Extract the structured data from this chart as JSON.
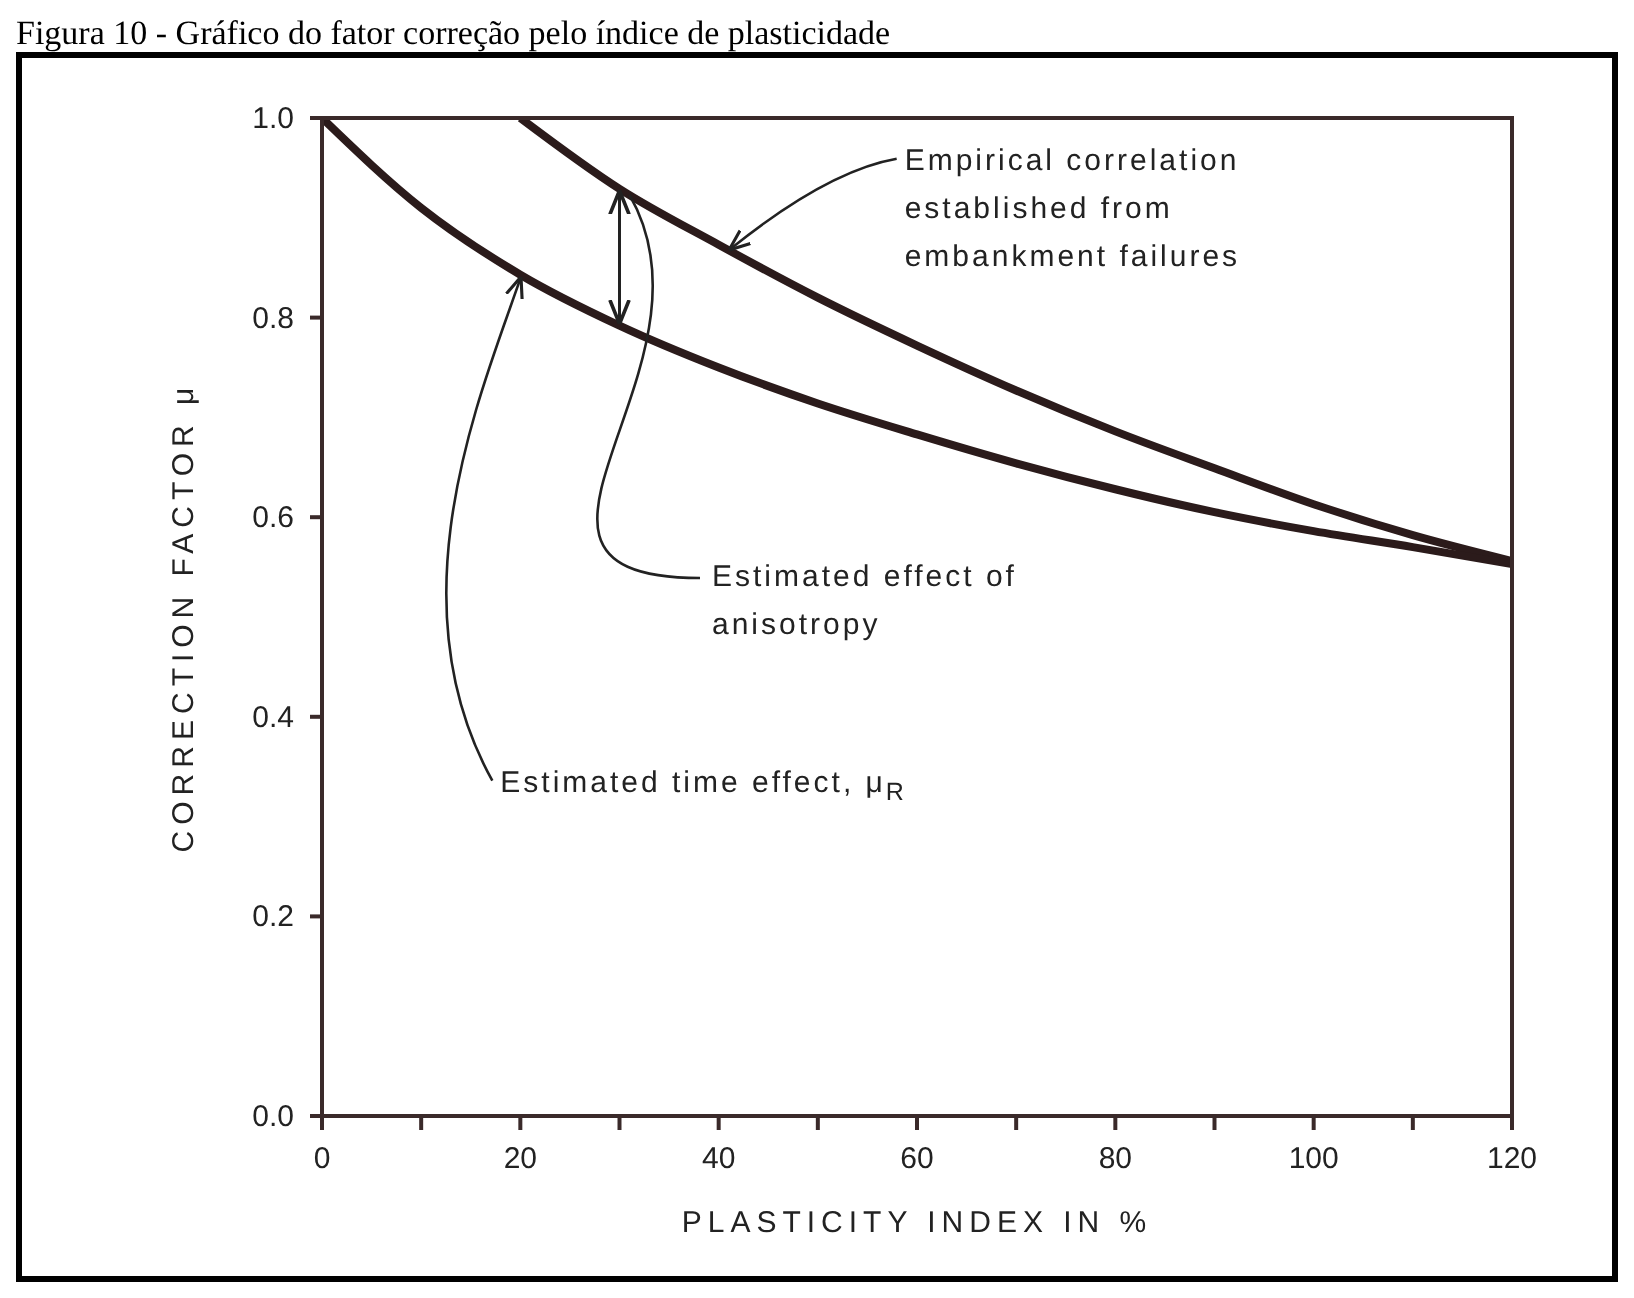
{
  "chart_data": {
    "type": "line",
    "title": "Figura 10 - Gráfico do fator correção pelo índice de plasticidade",
    "xlabel": "PLASTICITY INDEX IN %",
    "ylabel": "CORRECTION FACTOR μ",
    "series": [
      {
        "x": [
          20,
          30,
          40,
          50,
          60,
          70,
          80,
          90,
          100,
          110,
          120
        ],
        "values": [
          1.0,
          0.929,
          0.873,
          0.82,
          0.772,
          0.727,
          0.686,
          0.649,
          0.613,
          0.582,
          0.556
        ],
        "color": "#2b1b1b"
      },
      {
        "x": [
          0,
          10,
          20,
          30,
          40,
          50,
          60,
          70,
          80,
          90,
          100,
          110,
          120
        ],
        "values": [
          1.0,
          0.91,
          0.843,
          0.792,
          0.75,
          0.714,
          0.683,
          0.654,
          0.628,
          0.605,
          0.586,
          0.57,
          0.553
        ],
        "color": "#2b1b1b"
      }
    ],
    "annotations": [
      {
        "text": "Empirical correlation established from embankment failures",
        "x": 40,
        "y": 0.873
      },
      {
        "text": "Estimated effect of anisotropy",
        "x": 30,
        "y": 0.929
      },
      {
        "text": "Estimated time effect, μ$_{R}$",
        "x": 20,
        "y": 0.843
      }
    ],
    "xlim": [
      0,
      120
    ],
    "xticks": [
      0,
      {
        "value": 10,
        "label": null
      },
      20,
      {
        "value": 30,
        "label": null
      },
      40,
      {
        "value": 50,
        "label": null
      },
      60,
      {
        "value": 70,
        "label": null
      },
      80,
      {
        "value": 90,
        "label": null
      },
      100,
      {
        "value": 110,
        "label": null
      },
      120
    ],
    "ylim": [
      0,
      1
    ],
    "yticks": [
      {
        "value": 0,
        "label": "0.0"
      },
      {
        "value": 0.2,
        "label": "0.2"
      },
      {
        "value": 0.4,
        "label": "0.4"
      },
      {
        "value": 0.6,
        "label": "0.6"
      },
      {
        "value": 0.8,
        "label": "0.8"
      },
      {
        "value": 1,
        "label": "1.0"
      }
    ],
    "grid": false,
    "marker": "none",
    "line_style": "solid"
  }
}
